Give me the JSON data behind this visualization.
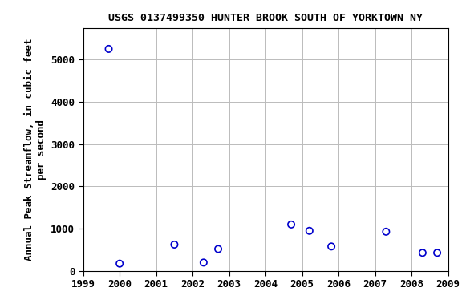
{
  "title": "USGS 0137499350 HUNTER BROOK SOUTH OF YORKTOWN NY",
  "ylabel_line1": "Annual Peak Streamflow, in cubic feet",
  "ylabel_line2": "per second",
  "years": [
    1999.7,
    2000.0,
    2001.5,
    2002.3,
    2002.7,
    2004.7,
    2005.2,
    2005.8,
    2007.3,
    2008.3,
    2008.7
  ],
  "values": [
    5250,
    175,
    625,
    200,
    520,
    1100,
    950,
    580,
    930,
    430,
    430
  ],
  "xlim": [
    1999,
    2009
  ],
  "ylim": [
    0,
    5750
  ],
  "yticks": [
    0,
    1000,
    2000,
    3000,
    4000,
    5000
  ],
  "xticks": [
    1999,
    2000,
    2001,
    2002,
    2003,
    2004,
    2005,
    2006,
    2007,
    2008,
    2009
  ],
  "marker_color": "#0000CC",
  "marker_size": 6,
  "background_color": "#ffffff",
  "grid_color": "#bbbbbb",
  "title_fontsize": 9.5,
  "label_fontsize": 9,
  "tick_fontsize": 9
}
